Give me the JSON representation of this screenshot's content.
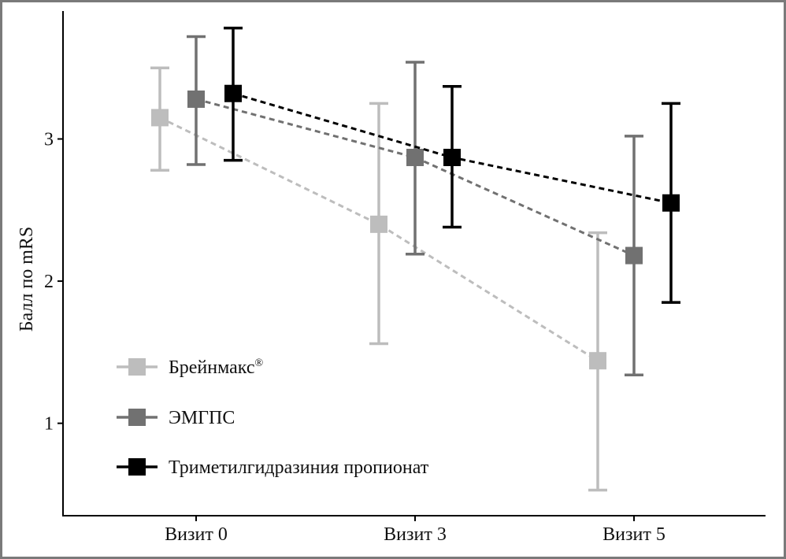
{
  "chart_data": {
    "type": "line",
    "xlabel": "",
    "ylabel": "Балл по mRS",
    "categories": [
      "Визит 0",
      "Визит 3",
      "Визит 5"
    ],
    "ylim": [
      0.35,
      3.9
    ],
    "yticks": [
      1,
      2,
      3
    ],
    "grid": false,
    "legend_position": "bottom-left",
    "series": [
      {
        "name": "Брейнмакс",
        "name_sup": "®",
        "color": "#bdbdbd",
        "values": [
          3.15,
          2.4,
          1.44
        ],
        "err_low": [
          2.78,
          1.56,
          0.53
        ],
        "err_high": [
          3.5,
          3.25,
          2.34
        ]
      },
      {
        "name": "ЭМГПС",
        "color": "#717171",
        "values": [
          3.28,
          2.87,
          2.18
        ],
        "err_low": [
          2.82,
          2.19,
          1.34
        ],
        "err_high": [
          3.72,
          3.54,
          3.02
        ]
      },
      {
        "name": "Триметилгидразиния пропионат",
        "color": "#000000",
        "values": [
          3.32,
          2.87,
          2.55
        ],
        "err_low": [
          2.85,
          2.38,
          1.85
        ],
        "err_high": [
          3.78,
          3.37,
          3.25
        ]
      }
    ]
  }
}
